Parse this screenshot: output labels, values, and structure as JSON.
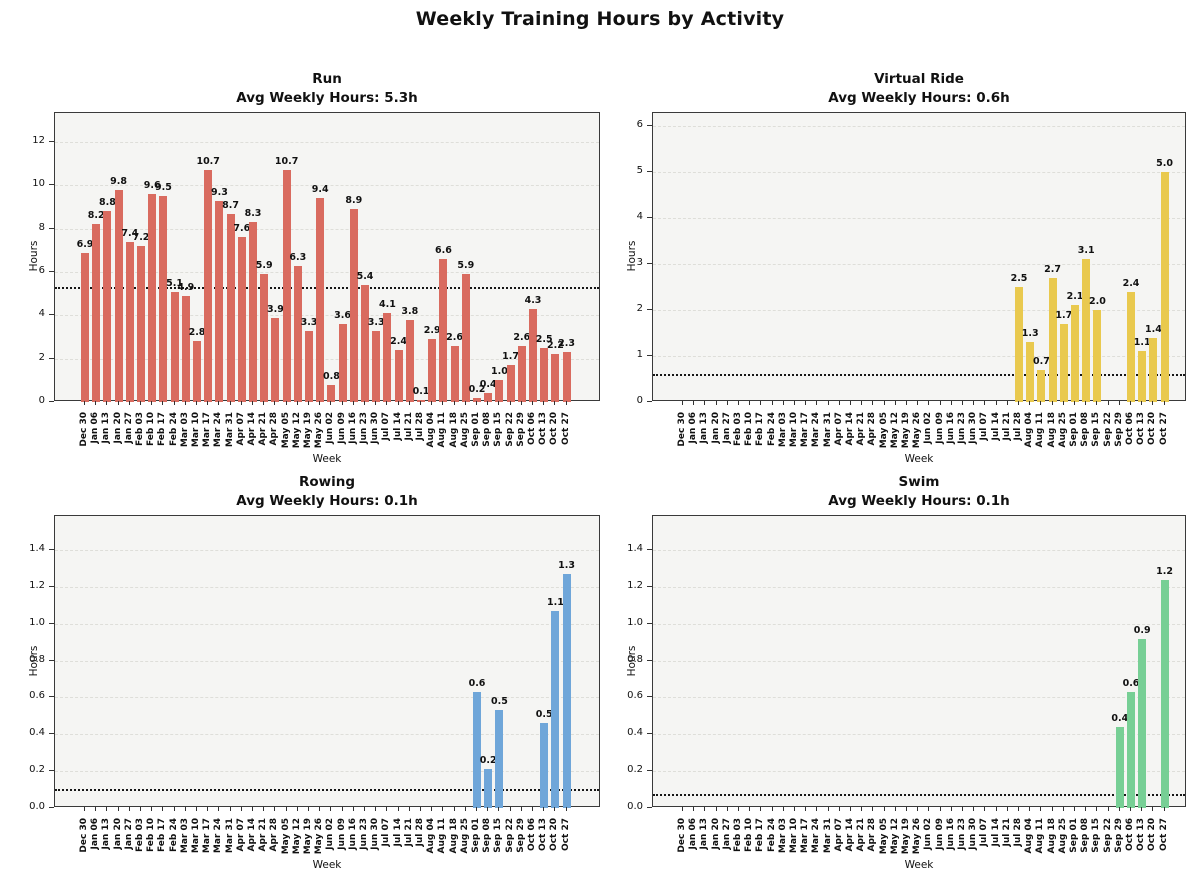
{
  "figure_title": "Weekly Training Hours by Activity",
  "style": {
    "plot_background": "#f5f5f3",
    "figure_background": "#ffffff",
    "grid_color": "#deded9",
    "avg_line_color": "#161616",
    "spine_color": "#3a3a3a"
  },
  "chart_data": {
    "type": "bar",
    "title": "Weekly Training Hours by Activity",
    "xlabel": "Week",
    "ylabel": "Hours",
    "grid": true,
    "legend": "none",
    "categories": [
      "Dec 30",
      "Jan 06",
      "Jan 13",
      "Jan 20",
      "Jan 27",
      "Feb 03",
      "Feb 10",
      "Feb 17",
      "Feb 24",
      "Mar 03",
      "Mar 10",
      "Mar 17",
      "Mar 24",
      "Mar 31",
      "Apr 07",
      "Apr 14",
      "Apr 21",
      "Apr 28",
      "May 05",
      "May 12",
      "May 19",
      "May 26",
      "Jun 02",
      "Jun 09",
      "Jun 16",
      "Jun 23",
      "Jun 30",
      "Jul 07",
      "Jul 14",
      "Jul 21",
      "Jul 28",
      "Aug 04",
      "Aug 11",
      "Aug 18",
      "Aug 25",
      "Sep 01",
      "Sep 08",
      "Sep 15",
      "Sep 22",
      "Sep 29",
      "Oct 06",
      "Oct 13",
      "Oct 20",
      "Oct 27"
    ],
    "series": [
      {
        "name": "Run",
        "subtitle": "Avg Weekly Hours: 5.3h",
        "avg_weekly_hours": 5.3,
        "color": "#d96b5f",
        "avg_line": 5.27,
        "ylim": [
          0,
          13.34
        ],
        "ytick_values": [
          0,
          2,
          4,
          6,
          8,
          10,
          12
        ],
        "ytick_labels": [
          "0",
          "2",
          "4",
          "6",
          "8",
          "10",
          "12"
        ],
        "values": [
          6.9,
          8.2,
          8.8,
          9.8,
          7.4,
          7.2,
          9.6,
          9.5,
          5.1,
          4.9,
          2.8,
          10.7,
          9.3,
          8.7,
          7.6,
          8.3,
          5.9,
          3.9,
          10.7,
          6.3,
          3.3,
          9.4,
          0.8,
          3.6,
          8.9,
          5.4,
          3.3,
          4.1,
          2.4,
          3.8,
          0.1,
          2.9,
          6.6,
          2.6,
          5.9,
          0.2,
          0.4,
          1.0,
          1.7,
          2.6,
          4.3,
          2.5,
          2.2,
          2.3
        ]
      },
      {
        "name": "Virtual Ride",
        "subtitle": "Avg Weekly Hours: 0.6h",
        "avg_weekly_hours": 0.6,
        "color": "#e9c94e",
        "avg_line": 0.59,
        "ylim": [
          0,
          6.28
        ],
        "ytick_values": [
          0,
          1,
          2,
          3,
          4,
          5,
          6
        ],
        "ytick_labels": [
          "0",
          "1",
          "2",
          "3",
          "4",
          "5",
          "6"
        ],
        "values": [
          null,
          null,
          null,
          null,
          null,
          null,
          null,
          null,
          null,
          null,
          null,
          null,
          null,
          null,
          null,
          null,
          null,
          null,
          null,
          null,
          null,
          null,
          null,
          null,
          null,
          null,
          null,
          null,
          null,
          null,
          2.5,
          1.3,
          0.7,
          2.7,
          1.7,
          2.1,
          3.1,
          2.0,
          null,
          null,
          2.4,
          1.1,
          1.4,
          5.0
        ]
      },
      {
        "name": "Rowing",
        "subtitle": "Avg Weekly Hours: 0.1h",
        "avg_weekly_hours": 0.1,
        "color": "#6fa6d9",
        "avg_line": 0.095,
        "ylim": [
          0,
          1.585
        ],
        "ytick_values": [
          0,
          0.2,
          0.4,
          0.6,
          0.8,
          1.0,
          1.2,
          1.4
        ],
        "ytick_labels": [
          "0.0",
          "0.2",
          "0.4",
          "0.6",
          "0.8",
          "1.0",
          "1.2",
          "1.4"
        ],
        "values": [
          null,
          null,
          null,
          null,
          null,
          null,
          null,
          null,
          null,
          null,
          null,
          null,
          null,
          null,
          null,
          null,
          null,
          null,
          null,
          null,
          null,
          null,
          null,
          null,
          null,
          null,
          null,
          null,
          null,
          null,
          null,
          null,
          null,
          null,
          null,
          0.6,
          0.2,
          0.5,
          null,
          null,
          null,
          0.5,
          1.1,
          1.3
        ],
        "values_precise": [
          null,
          null,
          null,
          null,
          null,
          null,
          null,
          null,
          null,
          null,
          null,
          null,
          null,
          null,
          null,
          null,
          null,
          null,
          null,
          null,
          null,
          null,
          null,
          null,
          null,
          null,
          null,
          null,
          null,
          null,
          null,
          null,
          null,
          null,
          null,
          0.63,
          0.21,
          0.53,
          null,
          null,
          null,
          0.46,
          1.07,
          1.27
        ]
      },
      {
        "name": "Swim",
        "subtitle": "Avg Weekly Hours: 0.1h",
        "avg_weekly_hours": 0.1,
        "color": "#77cf95",
        "avg_line": 0.073,
        "ylim": [
          0,
          1.585
        ],
        "ytick_values": [
          0,
          0.2,
          0.4,
          0.6,
          0.8,
          1.0,
          1.2,
          1.4
        ],
        "ytick_labels": [
          "0.0",
          "0.2",
          "0.4",
          "0.6",
          "0.8",
          "1.0",
          "1.2",
          "1.4"
        ],
        "values": [
          null,
          null,
          null,
          null,
          null,
          null,
          null,
          null,
          null,
          null,
          null,
          null,
          null,
          null,
          null,
          null,
          null,
          null,
          null,
          null,
          null,
          null,
          null,
          null,
          null,
          null,
          null,
          null,
          null,
          null,
          null,
          null,
          null,
          null,
          null,
          null,
          null,
          null,
          null,
          0.4,
          0.6,
          0.9,
          null,
          1.2
        ],
        "values_precise": [
          null,
          null,
          null,
          null,
          null,
          null,
          null,
          null,
          null,
          null,
          null,
          null,
          null,
          null,
          null,
          null,
          null,
          null,
          null,
          null,
          null,
          null,
          null,
          null,
          null,
          null,
          null,
          null,
          null,
          null,
          null,
          null,
          null,
          null,
          null,
          null,
          null,
          null,
          null,
          0.44,
          0.63,
          0.92,
          null,
          1.24
        ]
      }
    ]
  }
}
